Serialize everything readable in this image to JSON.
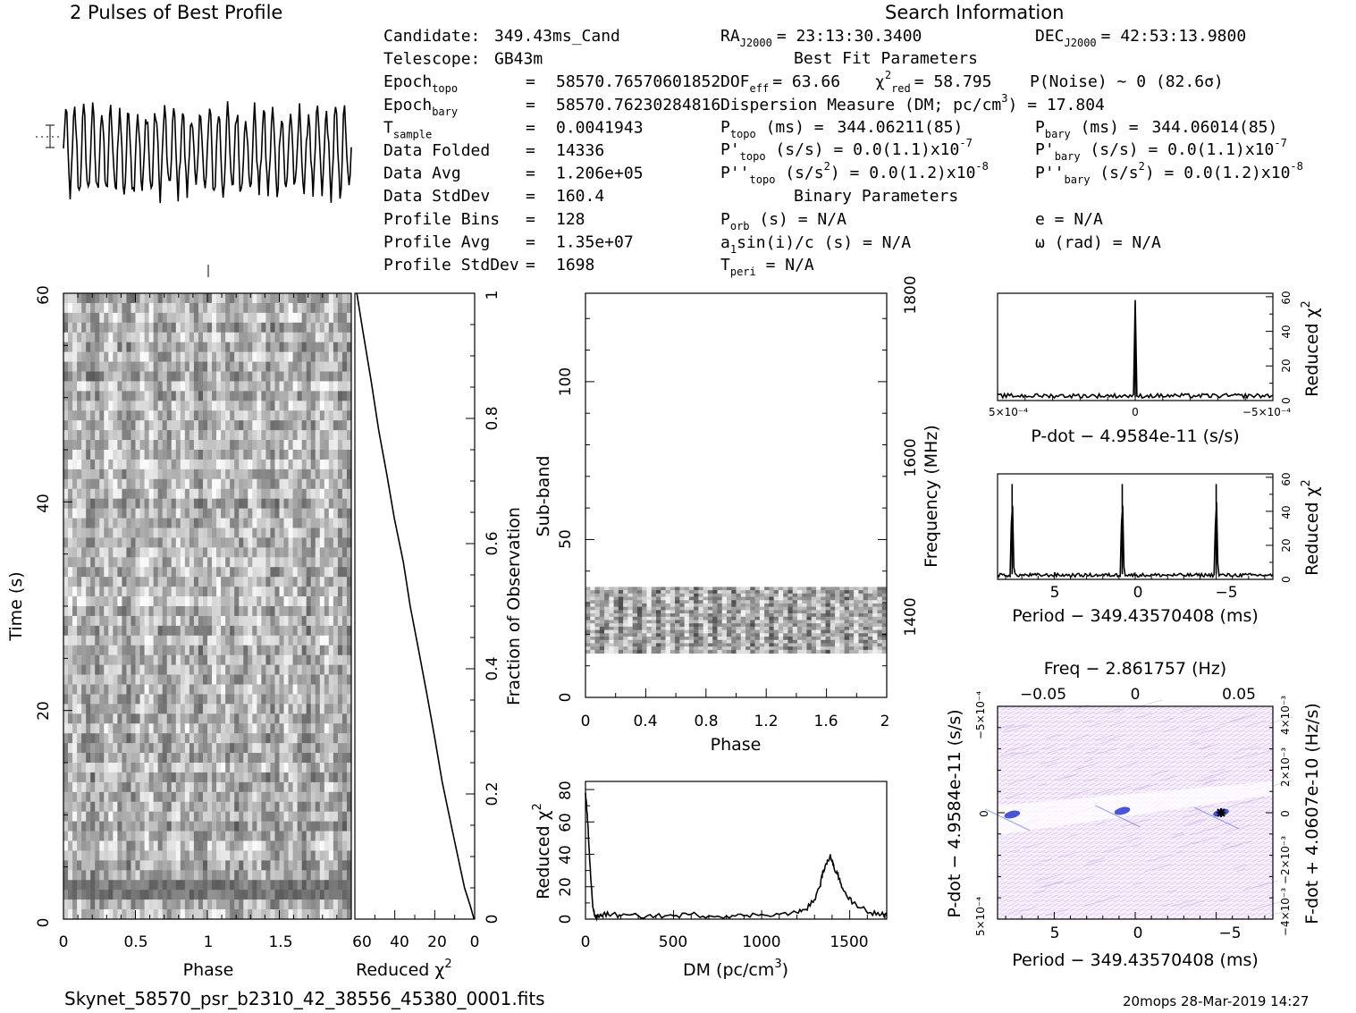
{
  "profile_title": "2 Pulses of Best Profile",
  "search_title": "Search Information",
  "filename": "Skynet_58570_psr_b2310_42_38556_45380_0001.fits",
  "footer_right": "20mops 28-Mar-2019 14:27",
  "left_info": [
    {
      "key": "Candidate:",
      "sub": "",
      "eq": "",
      "val": "349.43ms_Cand"
    },
    {
      "key": "Telescope:",
      "sub": "",
      "eq": "",
      "val": "GB43m"
    },
    {
      "key": "Epoch",
      "sub": "topo",
      "eq": "=",
      "val": "58570.76570601852"
    },
    {
      "key": "Epoch",
      "sub": "bary",
      "eq": "=",
      "val": "58570.76230284816"
    },
    {
      "key": "T",
      "sub": "sample",
      "eq": "=",
      "val": "0.0041943"
    },
    {
      "key": "Data Folded",
      "sub": "",
      "eq": "=",
      "val": "14336"
    },
    {
      "key": "Data Avg",
      "sub": "",
      "eq": "=",
      "val": "1.206e+05"
    },
    {
      "key": "Data StdDev",
      "sub": "",
      "eq": "=",
      "val": "160.4"
    },
    {
      "key": "Profile Bins",
      "sub": "",
      "eq": "=",
      "val": "128"
    },
    {
      "key": "Profile Avg",
      "sub": "",
      "eq": "=",
      "val": "1.35e+07"
    },
    {
      "key": "Profile StdDev",
      "sub": "",
      "eq": "=",
      "val": "1698"
    }
  ],
  "search_info": {
    "ra": {
      "label": "RA",
      "sub": "J2000",
      "val": "= 23:13:30.3400"
    },
    "dec": {
      "label": "DEC",
      "sub": "J2000",
      "val": "= 42:53:13.9800"
    },
    "best_fit_header": "Best Fit Parameters",
    "dof": {
      "label": "DOF",
      "sub": "eff",
      "val": "= 63.66"
    },
    "chi": {
      "label": "χ",
      "sup": "2",
      "sub": "red",
      "val": "= 58.795"
    },
    "pnoise": "P(Noise) ~ 0   (82.6σ)",
    "dm": {
      "text": "Dispersion Measure (DM; pc/cm",
      "sup": "3",
      "tail": ") = 17.804"
    },
    "ptopo": {
      "label": "P",
      "sub": "topo",
      "mid": " (ms) = ",
      "val": "344.06211(85)"
    },
    "pbary": {
      "label": "P",
      "sub": "bary",
      "mid": " (ms) = ",
      "val": "344.06014(85)"
    },
    "pdtopo": {
      "label": "P'",
      "sub": "topo",
      "mid": " (s/s) = ",
      "val": "0.0(1.1)x10",
      "exp": "-7"
    },
    "pdbary": {
      "label": "P'",
      "sub": "bary",
      "mid": " (s/s) = ",
      "val": "0.0(1.1)x10",
      "exp": "-7"
    },
    "pddtopo": {
      "label": "P''",
      "sub": "topo",
      "mid": " (s/s",
      "sup": "2",
      "tail": ") = ",
      "val": "0.0(1.2)x10",
      "exp": "-8"
    },
    "pddbary": {
      "label": "P''",
      "sub": "bary",
      "mid": " (s/s",
      "sup": "2",
      "tail": ") = ",
      "val": "0.0(1.2)x10",
      "exp": "-8"
    },
    "binary_header": "Binary Parameters",
    "porb": {
      "label": "P",
      "sub": "orb",
      "val": " (s) = N/A"
    },
    "ecc": "e = N/A",
    "asini": {
      "text": "a",
      "sub": "1",
      "val": "sin(i)/c (s) = N/A"
    },
    "omega": "ω (rad) = N/A",
    "tperi": {
      "label": "T",
      "sub": "peri",
      "val": " = N/A"
    }
  },
  "axes": {
    "time_label": "Time (s)",
    "phase_label": "Phase",
    "redchi_label": "Reduced χ",
    "redchi_sup": "2",
    "fraction_label": "Fraction of Observation",
    "subband_label": "Sub-band",
    "frequency_label": "Frequency (MHz)",
    "dm_label": "DM (pc/cm",
    "dm_sup": "3",
    "dm_tail": ")",
    "pdot_label": "P-dot − 4.9584e-11 (s/s)",
    "period_label": "Period − 349.43570408 (ms)",
    "freq_label": "Freq − 2.861757 (Hz)",
    "pdot_axis_label": "P-dot − 4.9584e-11 (s/s)",
    "fdot_axis_label": "F-dot + 4.0607e-10 (Hz/s)"
  },
  "chart_data": [
    {
      "name": "profile",
      "type": "line",
      "x_range": [
        0,
        2
      ],
      "pulses_shown": 2,
      "error_bar": true
    },
    {
      "name": "time_phase",
      "type": "heatmap",
      "xlabel": "Phase",
      "ylabel": "Time (s)",
      "xlim": [
        0,
        2
      ],
      "ylim": [
        0,
        60
      ],
      "x_ticks": [
        "0",
        "0.5",
        "1",
        "1.5"
      ],
      "y_ticks": [
        "0",
        "20",
        "40",
        "60"
      ]
    },
    {
      "name": "redchi_vs_time",
      "type": "line",
      "xlabel": "Reduced χ2",
      "ylabel": "Fraction of Observation",
      "xlim": [
        60,
        0
      ],
      "ylim": [
        0,
        1
      ],
      "x_ticks": [
        "60",
        "40",
        "20",
        "0"
      ],
      "y_ticks": [
        "0",
        "0.2",
        "0.4",
        "0.6",
        "0.8",
        "1"
      ],
      "x": [
        0.5,
        2,
        5,
        8,
        12,
        16,
        20,
        24,
        28,
        32,
        36,
        40,
        44,
        48,
        52,
        56,
        58.8
      ],
      "y": [
        0.0,
        0.02,
        0.05,
        0.09,
        0.15,
        0.22,
        0.29,
        0.36,
        0.43,
        0.5,
        0.57,
        0.64,
        0.71,
        0.78,
        0.86,
        0.94,
        1.0
      ]
    },
    {
      "name": "subband_phase",
      "type": "heatmap",
      "xlabel": "Phase",
      "ylabel": "Sub-band",
      "y2label": "Frequency (MHz)",
      "xlim": [
        0,
        2
      ],
      "ylim": [
        0,
        128
      ],
      "x_ticks": [
        "0",
        "0.4",
        "0.8",
        "1.2",
        "1.6",
        "2"
      ],
      "y_ticks": [
        "0",
        "50",
        "100"
      ],
      "y2_ticks": [
        "1400",
        "1600",
        "1800"
      ],
      "active_subbands": [
        14,
        35
      ]
    },
    {
      "name": "redchi_vs_dm",
      "type": "line",
      "xlabel": "DM (pc/cm3)",
      "ylabel": "Reduced χ2",
      "xlim": [
        0,
        1710
      ],
      "ylim": [
        0,
        85
      ],
      "x_ticks": [
        "0",
        "500",
        "1000",
        "1500"
      ],
      "y_ticks": [
        "0",
        "20",
        "40",
        "60",
        "80"
      ],
      "x": [
        0,
        10,
        20,
        30,
        40,
        50,
        60,
        80,
        100,
        150,
        200,
        300,
        400,
        500,
        600,
        700,
        800,
        900,
        1000,
        1100,
        1200,
        1250,
        1300,
        1330,
        1350,
        1370,
        1390,
        1400,
        1410,
        1430,
        1450,
        1480,
        1520,
        1570,
        1620,
        1680,
        1710
      ],
      "y": [
        78,
        65,
        45,
        25,
        10,
        3,
        1,
        2,
        3,
        3,
        2,
        2,
        2,
        2,
        3,
        2,
        2,
        2,
        3,
        3,
        4,
        6,
        12,
        20,
        30,
        34,
        40,
        36,
        32,
        28,
        22,
        15,
        10,
        7,
        4,
        3,
        2
      ]
    },
    {
      "name": "redchi_vs_pdot",
      "type": "line",
      "xlabel": "P-dot − 4.9584e-11 (s/s)",
      "ylabel": "Reduced χ2",
      "xlim": [
        0.0005,
        -0.0005
      ],
      "ylim": [
        0,
        62
      ],
      "x_ticks": [
        "5×10⁻⁴",
        "0",
        "−5×10⁻⁴"
      ],
      "y_ticks": [
        "0",
        "20",
        "40",
        "60"
      ],
      "x": [
        0.0005,
        0.0003,
        0.0001,
        1e-05,
        0.0,
        -1e-05,
        -0.0001,
        -0.0003,
        -0.0005
      ],
      "y": [
        2,
        2,
        2,
        3,
        58,
        3,
        2,
        2,
        2
      ]
    },
    {
      "name": "redchi_vs_period",
      "type": "line",
      "xlabel": "Period − 349.43570408 (ms)",
      "ylabel": "Reduced χ2",
      "xlim": [
        8.5,
        -8.5
      ],
      "ylim": [
        0,
        62
      ],
      "x_ticks": [
        "5",
        "0",
        "−5"
      ],
      "y_ticks": [
        "0",
        "20",
        "40",
        "60"
      ],
      "x": [
        8.5,
        7.9,
        7.6,
        7.4,
        7.2,
        6.5,
        3,
        1.2,
        0.8,
        0.6,
        0.4,
        -2,
        -4.5,
        -5.0,
        -5.3,
        -5.6,
        -7,
        -8.5
      ],
      "y": [
        2,
        3,
        56,
        3,
        2,
        2,
        2,
        3,
        56,
        3,
        2,
        2,
        3,
        56,
        3,
        2,
        2,
        2
      ]
    },
    {
      "name": "period_pdot_plane",
      "type": "heatmap",
      "xlabel": "Period − 349.43570408 (ms)",
      "x2label": "Freq − 2.861757 (Hz)",
      "ylabel": "P-dot − 4.9584e-11 (s/s)",
      "y2label": "F-dot + 4.0607e-10 (Hz/s)",
      "x_ticks": [
        "5",
        "0",
        "−5"
      ],
      "x2_ticks": [
        "−0.05",
        "0",
        "0.05"
      ],
      "y_ticks": [
        "5×10⁻⁴",
        "0",
        "−5×10⁻⁴"
      ],
      "y2_ticks": [
        "−4×10⁻³",
        "−2×10⁻³",
        "0",
        "2×10⁻³",
        "4×10⁻³"
      ],
      "best_marker": {
        "period": -5.3,
        "pdot": 0
      }
    }
  ]
}
